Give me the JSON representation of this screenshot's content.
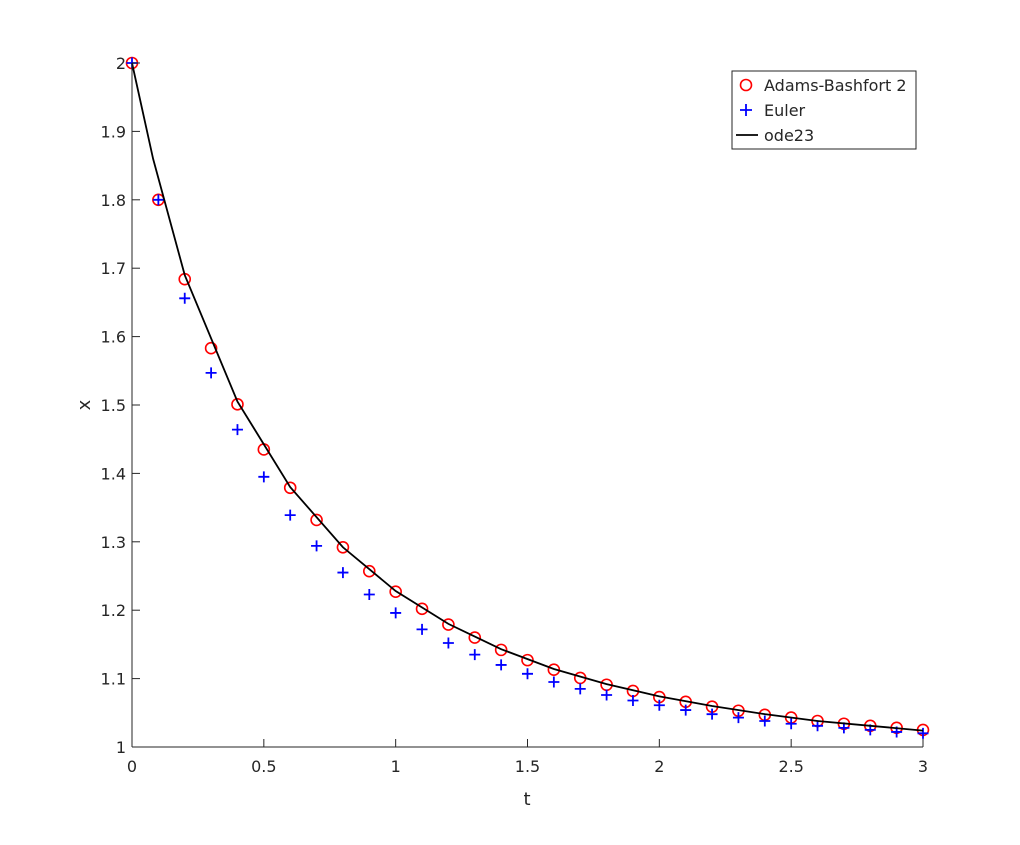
{
  "chart_data": {
    "type": "scatter",
    "title": "",
    "xlabel": "t",
    "ylabel": "x",
    "xlim": [
      0,
      3
    ],
    "ylim": [
      1,
      2
    ],
    "x_ticks": [
      0,
      0.5,
      1,
      1.5,
      2,
      2.5,
      3
    ],
    "x_tick_labels": [
      "0",
      "0.5",
      "1",
      "1.5",
      "2",
      "2.5",
      "3"
    ],
    "y_ticks": [
      1,
      1.1,
      1.2,
      1.3,
      1.4,
      1.5,
      1.6,
      1.7,
      1.8,
      1.9,
      2
    ],
    "y_tick_labels": [
      "1",
      "1.1",
      "1.2",
      "1.3",
      "1.4",
      "1.5",
      "1.6",
      "1.7",
      "1.8",
      "1.9",
      "2"
    ],
    "grid": false,
    "legend_position": "top-right",
    "series": [
      {
        "name": "Adams-Bashfort 2",
        "marker": "circle",
        "color": "#ff0000",
        "x": [
          0,
          0.1,
          0.2,
          0.3,
          0.4,
          0.5,
          0.6,
          0.7,
          0.8,
          0.9,
          1.0,
          1.1,
          1.2,
          1.3,
          1.4,
          1.5,
          1.6,
          1.7,
          1.8,
          1.9,
          2.0,
          2.1,
          2.2,
          2.3,
          2.4,
          2.5,
          2.6,
          2.7,
          2.8,
          2.9,
          3.0
        ],
        "y": [
          2.0,
          1.8,
          1.684,
          1.583,
          1.501,
          1.435,
          1.379,
          1.332,
          1.292,
          1.257,
          1.227,
          1.202,
          1.179,
          1.16,
          1.142,
          1.127,
          1.113,
          1.101,
          1.091,
          1.082,
          1.073,
          1.066,
          1.059,
          1.053,
          1.047,
          1.043,
          1.038,
          1.034,
          1.031,
          1.028,
          1.025
        ]
      },
      {
        "name": "Euler",
        "marker": "plus",
        "color": "#0000ff",
        "x": [
          0,
          0.1,
          0.2,
          0.3,
          0.4,
          0.5,
          0.6,
          0.7,
          0.8,
          0.9,
          1.0,
          1.1,
          1.2,
          1.3,
          1.4,
          1.5,
          1.6,
          1.7,
          1.8,
          1.9,
          2.0,
          2.1,
          2.2,
          2.3,
          2.4,
          2.5,
          2.6,
          2.7,
          2.8,
          2.9,
          3.0
        ],
        "y": [
          2.0,
          1.8,
          1.656,
          1.547,
          1.464,
          1.395,
          1.339,
          1.294,
          1.255,
          1.223,
          1.196,
          1.172,
          1.152,
          1.135,
          1.12,
          1.107,
          1.095,
          1.085,
          1.076,
          1.068,
          1.061,
          1.054,
          1.048,
          1.043,
          1.038,
          1.034,
          1.031,
          1.028,
          1.025,
          1.022,
          1.02
        ]
      },
      {
        "name": "ode23",
        "marker": "line",
        "color": "#000000",
        "x": [
          0,
          0.08,
          0.2,
          0.4,
          0.6,
          0.8,
          1.0,
          1.2,
          1.4,
          1.6,
          1.8,
          2.0,
          2.2,
          2.4,
          2.6,
          2.8,
          3.0
        ],
        "y": [
          2.0,
          1.86,
          1.69,
          1.505,
          1.38,
          1.292,
          1.228,
          1.18,
          1.143,
          1.114,
          1.092,
          1.074,
          1.06,
          1.048,
          1.038,
          1.031,
          1.024
        ]
      }
    ]
  }
}
